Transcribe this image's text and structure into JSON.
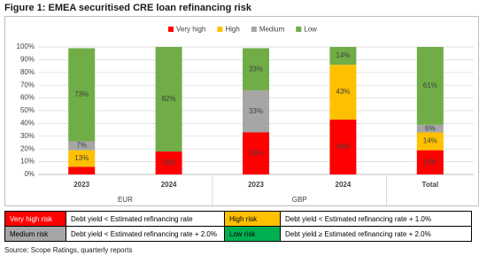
{
  "chart_data": {
    "type": "stacked_bar",
    "title": "Figure 1: EMEA securitised CRE loan refinancing risk",
    "categories": [
      "2023",
      "2024",
      "2023",
      "2024",
      "Total"
    ],
    "groups": [
      {
        "name": "EUR",
        "span": 2
      },
      {
        "name": "GBP",
        "span": 2
      },
      {
        "name": null,
        "span": 1
      }
    ],
    "series": [
      {
        "name": "Very high",
        "color": "#ff0000",
        "values": [
          6,
          18,
          33,
          43,
          19
        ],
        "value_labels": [
          null,
          "18%",
          "33%",
          "43%",
          "19%"
        ]
      },
      {
        "name": "High",
        "color": "#ffc000",
        "values": [
          13,
          0,
          0,
          43,
          14
        ],
        "value_labels": [
          "13%",
          null,
          null,
          "43%",
          "14%"
        ]
      },
      {
        "name": "Medium",
        "color": "#a6a6a6",
        "values": [
          7,
          0,
          33,
          0,
          6
        ],
        "value_labels": [
          "7%",
          null,
          "33%",
          null,
          "6%"
        ]
      },
      {
        "name": "Low",
        "color": "#70ad47",
        "values": [
          73,
          82,
          33,
          14,
          61
        ],
        "value_labels": [
          "73%",
          "82%",
          "33%",
          "14%",
          "61%"
        ]
      }
    ],
    "ylim": [
      0,
      100
    ],
    "yticks": [
      {
        "value": 0,
        "label": "0%"
      },
      {
        "value": 10,
        "label": "10%"
      },
      {
        "value": 20,
        "label": "20%"
      },
      {
        "value": 30,
        "label": "30%"
      },
      {
        "value": 40,
        "label": "40%"
      },
      {
        "value": 50,
        "label": "50%"
      },
      {
        "value": 60,
        "label": "60%"
      },
      {
        "value": 70,
        "label": "70%"
      },
      {
        "value": 80,
        "label": "80%"
      },
      {
        "value": 90,
        "label": "90%"
      },
      {
        "value": 100,
        "label": "100%"
      }
    ],
    "grid": true,
    "legend": "top"
  },
  "risk_table": {
    "rows": [
      [
        {
          "label": "Very high risk",
          "description": "Debt yield < Estimated refinancing rate"
        },
        {
          "label": "High risk",
          "description": "Debt yield < Estimated refinancing rate + 1.0%"
        }
      ],
      [
        {
          "label": "Medium risk",
          "description": "Debt yield < Estimated refinancing rate + 2.0%"
        },
        {
          "label": "Low risk",
          "description": "Debt yield ≥ Estimated refinancing rate + 2.0%"
        }
      ]
    ]
  },
  "source": "Source: Scope Ratings, quarterly reports"
}
